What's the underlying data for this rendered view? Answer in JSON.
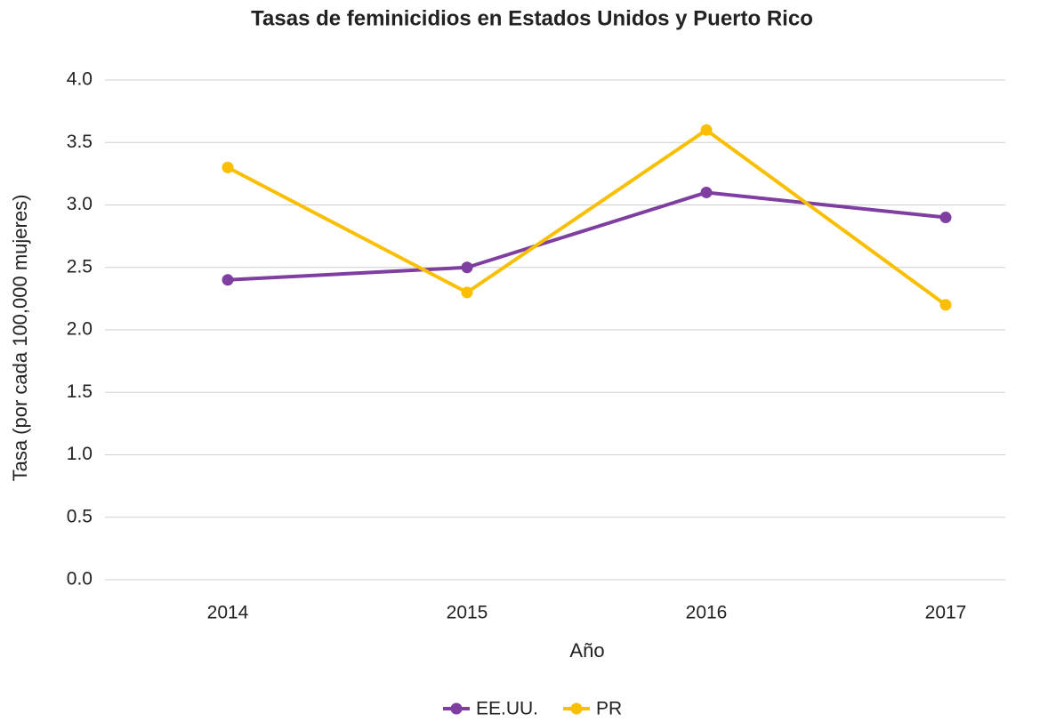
{
  "chart_data": {
    "type": "line",
    "title": "Tasas de feminicidios en Estados Unidos y Puerto Rico",
    "xlabel": "Año",
    "ylabel": "Tasa (por cada 100,000 mujeres)",
    "categories": [
      "2014",
      "2015",
      "2016",
      "2017"
    ],
    "series": [
      {
        "name": "EE.UU.",
        "color": "#7e3fa0",
        "values": [
          2.4,
          2.5,
          3.1,
          2.9
        ]
      },
      {
        "name": "PR",
        "color": "#f9bf00",
        "values": [
          3.3,
          2.3,
          3.6,
          2.2
        ]
      }
    ],
    "ylim": [
      0,
      4
    ],
    "yticks": [
      {
        "value": 0,
        "label": "0.0"
      },
      0.5,
      {
        "value": 1,
        "label": "1.0"
      },
      1.5,
      {
        "value": 2,
        "label": "2.0"
      },
      2.5,
      {
        "value": 3,
        "label": "3.0"
      },
      3.5,
      {
        "value": 4,
        "label": "4.0"
      }
    ],
    "grid": true,
    "legend": "bottom"
  }
}
